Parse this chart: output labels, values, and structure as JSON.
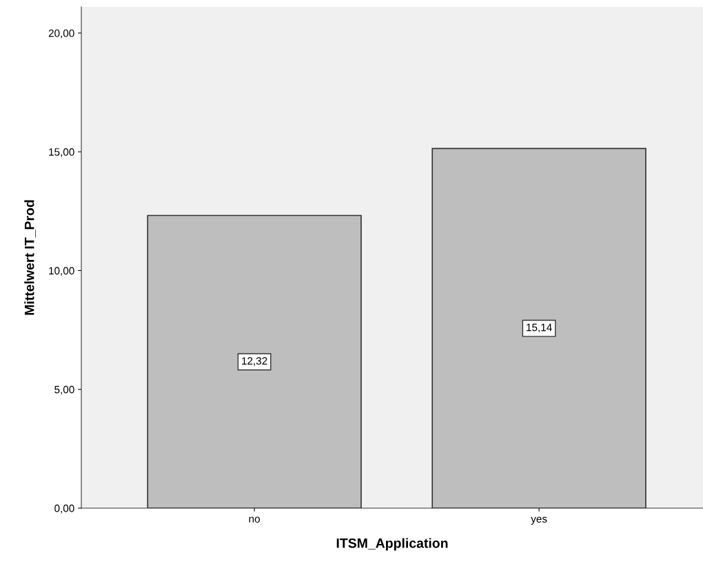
{
  "chart_data": {
    "type": "bar",
    "xlabel": "ITSM_Application",
    "ylabel": "Mittelwert IT_Prod",
    "categories": [
      "no",
      "yes"
    ],
    "values": [
      12.32,
      15.14
    ],
    "value_labels": [
      "12,32",
      "15,14"
    ],
    "color": "#bebebe",
    "ylim": [
      0,
      21.1
    ],
    "yticks": [
      {
        "value": 0,
        "label": "0,00"
      },
      {
        "value": 5,
        "label": "5,00"
      },
      {
        "value": 10,
        "label": "10,00"
      },
      {
        "value": 15,
        "label": "15,00"
      },
      {
        "value": 20,
        "label": "20,00"
      }
    ],
    "grid": false
  }
}
